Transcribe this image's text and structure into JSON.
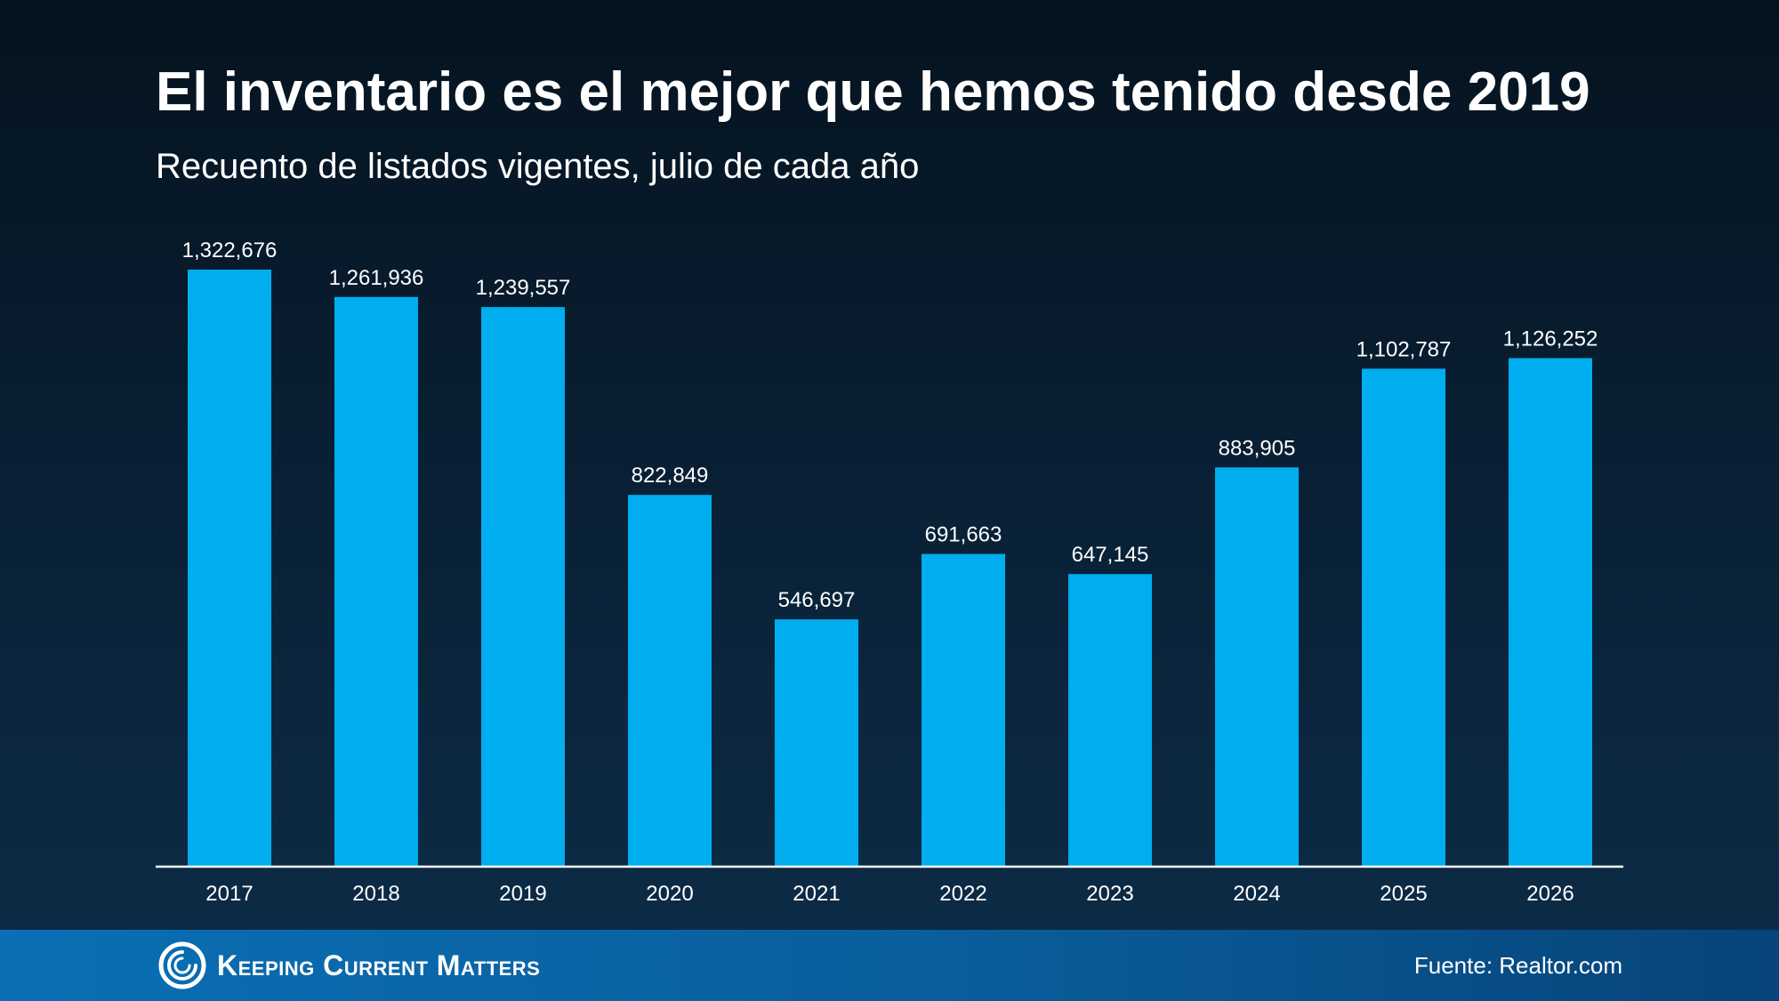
{
  "title": "El inventario es el mejor que hemos tenido desde 2019",
  "subtitle": "Recuento de listados vigentes, julio de cada año",
  "chart_data": {
    "type": "bar",
    "categories": [
      "2017",
      "2018",
      "2019",
      "2020",
      "2021",
      "2022",
      "2023",
      "2024",
      "2025",
      "2026"
    ],
    "values": [
      1322676,
      1261936,
      1239557,
      822849,
      546697,
      691663,
      647145,
      883905,
      1102787,
      1126252
    ],
    "value_labels": [
      "1,322,676",
      "1,261,936",
      "1,239,557",
      "822,849",
      "546,697",
      "691,663",
      "647,145",
      "883,905",
      "1,102,787",
      "1,126,252"
    ],
    "xlabel": "",
    "ylabel": "",
    "ylim": [
      0,
      1322676
    ],
    "grid": false,
    "legend": "none",
    "bar_color": "#00adef"
  },
  "footer": {
    "brand": "Keeping Current Matters",
    "source": "Fuente: Realtor.com"
  },
  "colors": {
    "bar": "#00adef",
    "axis": "#ffffff",
    "text": "#ffffff",
    "footer_bar": "#0a6fb5"
  }
}
